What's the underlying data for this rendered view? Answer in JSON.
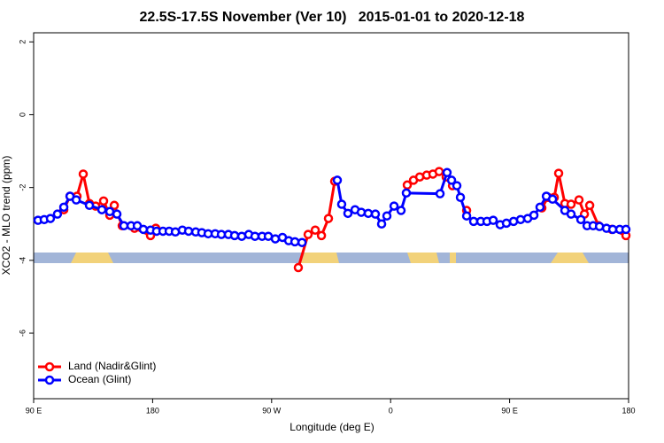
{
  "chart_data": {
    "type": "line",
    "title": "22.5S-17.5S November (Ver 10)   2015-01-01 to 2020-12-18",
    "x_label": "Longitude (deg E)",
    "y_label": "XCO2 - MLO trend (ppm)",
    "xlim": [
      90,
      540
    ],
    "ylim": [
      -7.8,
      2.25
    ],
    "xticks": [
      {
        "value": 90,
        "label": "90 E"
      },
      180,
      {
        "value": 270,
        "label": "90 W"
      },
      {
        "value": 360,
        "label": "0"
      },
      {
        "value": 450,
        "label": "90 E"
      },
      {
        "value": 540,
        "label": "180"
      }
    ],
    "yticks": [
      -6,
      -4,
      -2,
      0,
      2
    ],
    "legend": "bottomleft",
    "series": [
      {
        "name": "Land (Nadir&Glint)",
        "color": "#ff0000",
        "x": [
          112.8,
          117.5,
          122.8,
          127.5,
          132.2,
          136.9,
          142.9,
          147.6,
          151,
          157,
          166.3,
          178.4,
          182.4,
          null,
          290.2,
          297.6,
          303,
          307.7,
          313,
          317.7,
          null,
          372.6,
          377.3,
          382,
          387.3,
          392,
          396.7,
          402,
          406.8,
          null,
          417.5,
          null,
          474.4,
          479.1,
          483.8,
          487.1,
          491.8,
          496.5,
          502.5,
          506.6,
          510.6,
          517.3,
          527.3,
          538
        ],
        "values": [
          -2.61,
          -2.24,
          -2.24,
          -1.63,
          -2.44,
          -2.51,
          -2.37,
          -2.76,
          -2.49,
          -3.05,
          -3.12,
          -3.32,
          -3.12,
          null,
          -4.2,
          -3.29,
          -3.17,
          -3.32,
          -2.85,
          -1.83,
          null,
          -1.93,
          -1.8,
          -1.71,
          -1.66,
          -1.63,
          -1.56,
          -1.71,
          -1.95,
          null,
          -2.63,
          null,
          -2.56,
          -2.27,
          -2.27,
          -1.61,
          -2.44,
          -2.46,
          -2.34,
          -2.73,
          -2.49,
          -3.05,
          -3.15,
          -3.32
        ]
      },
      {
        "name": "Ocean (Glint)",
        "color": "#0000ff",
        "x": [
          93.3,
          98,
          102.7,
          108,
          112.8,
          117.5,
          122.2,
          132.2,
          141.6,
          147.6,
          153,
          158.3,
          163.7,
          168.4,
          173,
          178.4,
          183,
          187.8,
          192.5,
          197.2,
          202.5,
          207.2,
          212.6,
          217.2,
          222,
          227.3,
          232,
          237.3,
          242,
          247.4,
          252.7,
          257.4,
          262.8,
          267.5,
          272.8,
          278.2,
          282.9,
          287.6,
          293,
          null,
          319.7,
          323,
          327.7,
          333.1,
          337.8,
          343.1,
          348.5,
          353.2,
          357.2,
          362.6,
          367.9,
          371.9,
          397.4,
          402.7,
          406.1,
          410.1,
          412.8,
          417.5,
          422.8,
          428.2,
          432.9,
          437.6,
          442.9,
          447.6,
          453,
          458.3,
          463.7,
          468.4,
          473,
          477.8,
          482.5,
          491.8,
          496.5,
          503.9,
          508.6,
          513.2,
          518,
          523.3,
          528,
          533.3,
          538
        ],
        "values": [
          -2.9,
          -2.88,
          -2.85,
          -2.73,
          -2.54,
          -2.24,
          -2.34,
          -2.49,
          -2.61,
          -2.66,
          -2.73,
          -3.05,
          -3.05,
          -3.05,
          -3.15,
          -3.17,
          -3.2,
          -3.2,
          -3.2,
          -3.22,
          -3.17,
          -3.2,
          -3.22,
          -3.24,
          -3.27,
          -3.27,
          -3.29,
          -3.29,
          -3.32,
          -3.34,
          -3.29,
          -3.34,
          -3.34,
          -3.34,
          -3.41,
          -3.37,
          -3.46,
          -3.49,
          -3.51,
          null,
          -1.8,
          -2.46,
          -2.71,
          -2.61,
          -2.68,
          -2.71,
          -2.73,
          -3.0,
          -2.78,
          -2.51,
          -2.63,
          -2.15,
          -2.17,
          -1.59,
          -1.8,
          -1.95,
          -2.27,
          -2.78,
          -2.93,
          -2.93,
          -2.93,
          -2.9,
          -3.02,
          -2.98,
          -2.93,
          -2.88,
          -2.85,
          -2.76,
          -2.54,
          -2.24,
          -2.32,
          -2.63,
          -2.73,
          -2.88,
          -3.05,
          -3.05,
          -3.07,
          -3.12,
          -3.15,
          -3.15,
          -3.15
        ]
      }
    ]
  }
}
